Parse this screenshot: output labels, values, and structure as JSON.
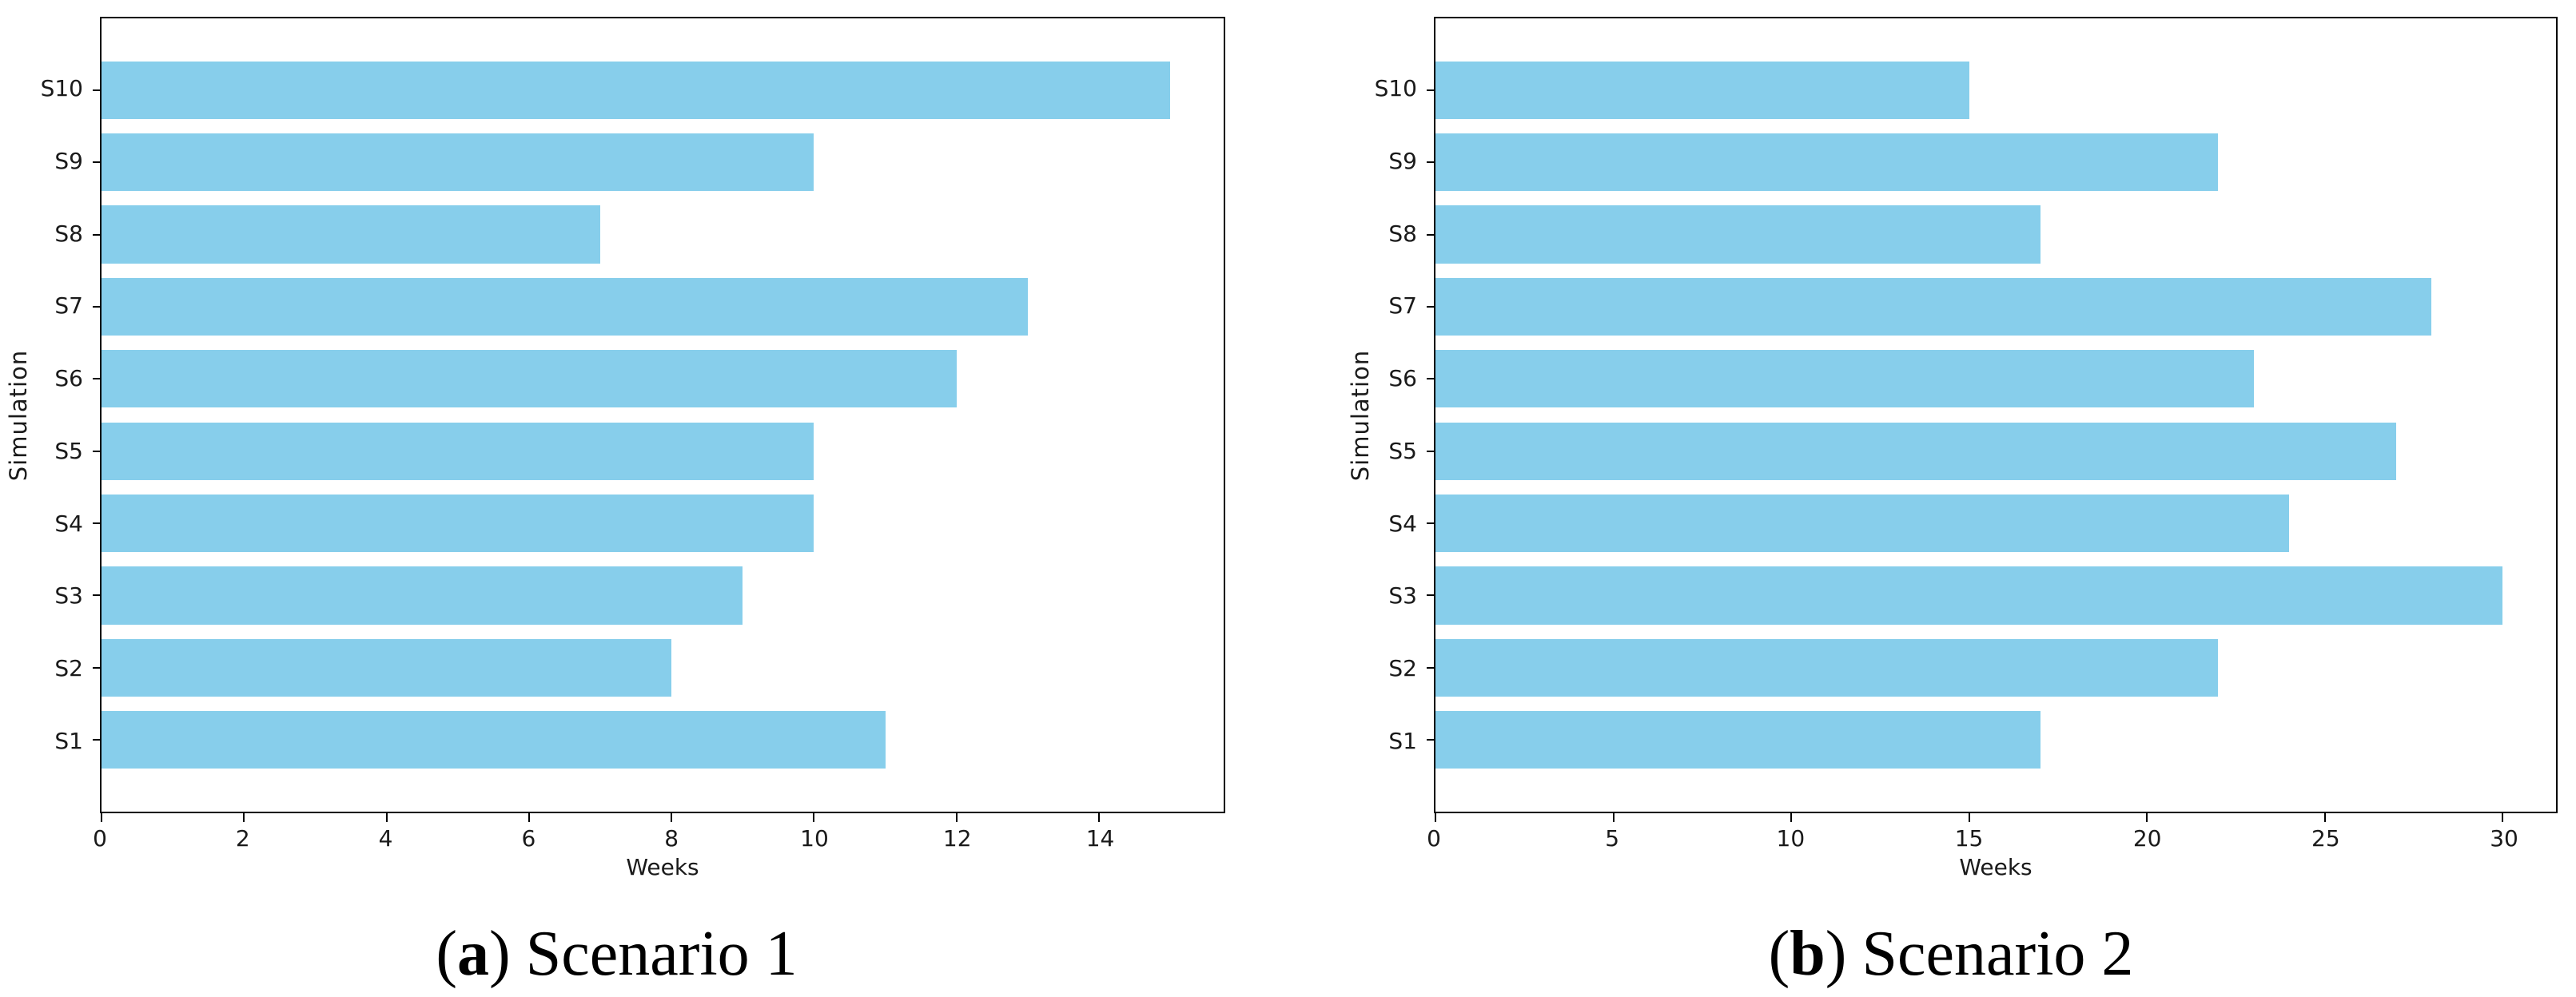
{
  "figure": {
    "background_color": "#ffffff",
    "text_color": "#1a1a1a",
    "spine_color": "#000000"
  },
  "chart_data": [
    {
      "type": "bar",
      "orientation": "horizontal",
      "caption": {
        "open": "(",
        "marker": "a",
        "close": ")",
        "text": "Scenario 1"
      },
      "categories": [
        "S1",
        "S2",
        "S3",
        "S4",
        "S5",
        "S6",
        "S7",
        "S8",
        "S9",
        "S10"
      ],
      "values": [
        11,
        8,
        9,
        10,
        10,
        12,
        13,
        7,
        10,
        15
      ],
      "category_order_top_to_bottom": [
        "S10",
        "S9",
        "S8",
        "S7",
        "S6",
        "S5",
        "S4",
        "S3",
        "S2",
        "S1"
      ],
      "xlabel": "Weeks",
      "ylabel": "Simulation",
      "xlim": [
        0,
        15.75
      ],
      "xticks": [
        0,
        2,
        4,
        6,
        8,
        10,
        12,
        14
      ],
      "bar_color": "#87CEEB",
      "grid": false,
      "legend": null
    },
    {
      "type": "bar",
      "orientation": "horizontal",
      "caption": {
        "open": "(",
        "marker": "b",
        "close": ")",
        "text": "Scenario 2"
      },
      "categories": [
        "S1",
        "S2",
        "S3",
        "S4",
        "S5",
        "S6",
        "S7",
        "S8",
        "S9",
        "S10"
      ],
      "values": [
        17,
        22,
        30,
        24,
        27,
        23,
        28,
        17,
        22,
        15
      ],
      "category_order_top_to_bottom": [
        "S10",
        "S9",
        "S8",
        "S7",
        "S6",
        "S5",
        "S4",
        "S3",
        "S2",
        "S1"
      ],
      "xlabel": "Weeks",
      "ylabel": "Simulation",
      "xlim": [
        0,
        31.5
      ],
      "xticks": [
        0,
        5,
        10,
        15,
        20,
        25,
        30
      ],
      "bar_color": "#87CEEB",
      "grid": false,
      "legend": null
    }
  ]
}
